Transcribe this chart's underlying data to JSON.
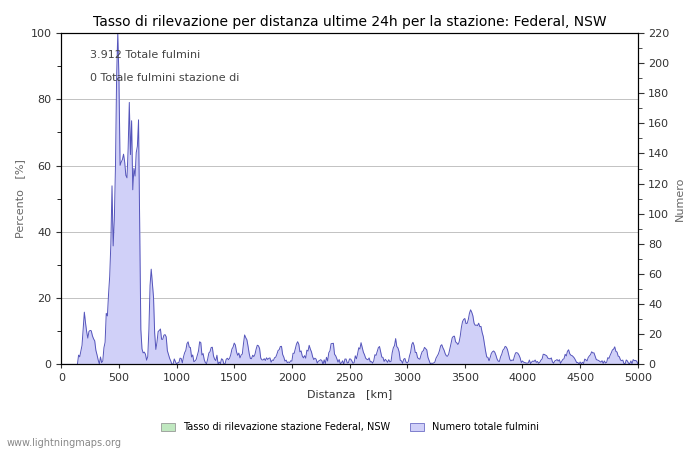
{
  "title": "Tasso di rilevazione per distanza ultime 24h per la stazione: Federal, NSW",
  "xlabel": "Distanza   [km]",
  "ylabel_left": "Percento   [%]",
  "ylabel_right": "Numero",
  "annotation_line1": "3.912 Totale fulmini",
  "annotation_line2": "0 Totale fulmini stazione di",
  "xlim": [
    0,
    5000
  ],
  "ylim_left": [
    0,
    100
  ],
  "ylim_right": [
    0,
    220
  ],
  "xticks": [
    0,
    500,
    1000,
    1500,
    2000,
    2500,
    3000,
    3500,
    4000,
    4500,
    5000
  ],
  "yticks_left": [
    0,
    20,
    40,
    60,
    80,
    100
  ],
  "yticks_right": [
    0,
    20,
    40,
    60,
    80,
    100,
    120,
    140,
    160,
    180,
    200,
    220
  ],
  "legend_label_green": "Tasso di rilevazione stazione Federal, NSW",
  "legend_label_blue": "Numero totale fulmini",
  "watermark": "www.lightningmaps.org",
  "fill_color_blue": "#d0d0f8",
  "fill_color_green": "#c0e8c0",
  "line_color": "#5555bb",
  "bg_color": "#ffffff",
  "grid_color": "#aaaaaa",
  "title_fontsize": 10,
  "label_fontsize": 8,
  "tick_fontsize": 8,
  "annotation_fontsize": 8
}
